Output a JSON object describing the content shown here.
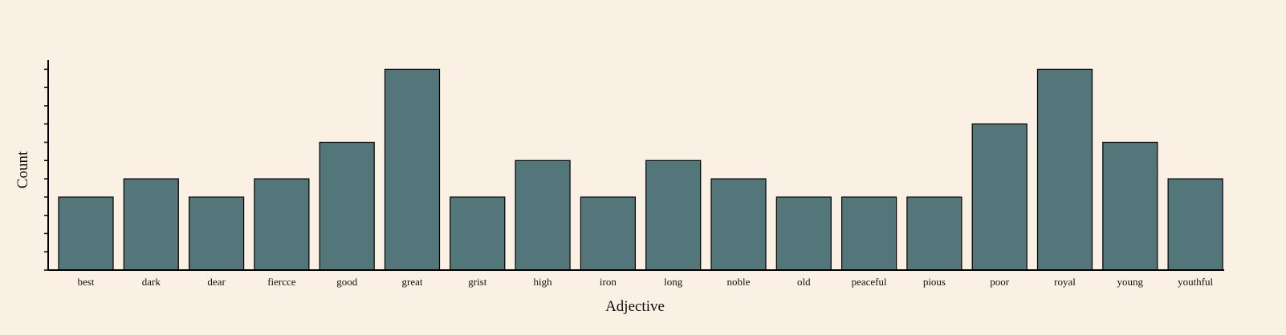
{
  "chart_data": {
    "type": "bar",
    "categories": [
      "best",
      "dark",
      "dear",
      "fiercce",
      "good",
      "great",
      "grist",
      "high",
      "iron",
      "long",
      "noble",
      "old",
      "peaceful",
      "pious",
      "poor",
      "royal",
      "young",
      "youthful"
    ],
    "values": [
      4,
      5,
      4,
      5,
      7,
      11,
      4,
      6,
      4,
      6,
      5,
      4,
      4,
      4,
      8,
      11,
      7,
      5
    ],
    "xlabel": "Adjective",
    "ylabel": "Count",
    "ylim": [
      0,
      11.5
    ],
    "yticks": [
      0,
      1,
      2,
      3,
      4,
      5,
      6,
      7,
      8,
      9,
      10,
      11
    ],
    "ytick_labels_shown": false,
    "grid": false,
    "bar_color": "#53767b",
    "background_color": "#faf1e4"
  }
}
